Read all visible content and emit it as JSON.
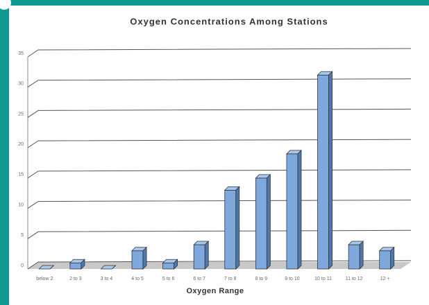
{
  "chart_data": {
    "type": "bar",
    "title": "Oxygen Concentrations Among Stations",
    "x_label": "Oxygen Range",
    "categories": [
      "below 2",
      "2 to 3",
      "3 to 4",
      "4 to 5",
      "5 to 6",
      "6 to 7",
      "7 to 8",
      "8 to 9",
      "9 to 10",
      "10 to 11",
      "11 to 12",
      "12 +"
    ],
    "values": [
      0,
      1,
      0,
      3,
      1,
      4,
      13,
      15,
      19,
      32,
      4,
      3
    ],
    "color": "#7fa9dc",
    "ylim": [
      0,
      35
    ],
    "yticks": [
      0,
      5,
      10,
      15,
      20,
      25,
      30,
      35
    ],
    "grid": true
  }
}
